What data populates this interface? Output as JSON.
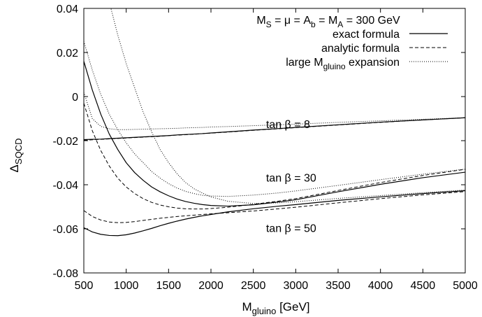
{
  "chart_data": {
    "type": "line",
    "title_main": "M",
    "title_sub_1": "S",
    "title_mid": " = μ = A",
    "title_sub_2": "b",
    "title_mid_2": " = M",
    "title_sub_3": "A",
    "title_tail": " = 300 GeV",
    "xlabel_main": "M",
    "xlabel_sub": "gluino",
    "xlabel_tail": " [GeV]",
    "ylabel_main": "Δ",
    "ylabel_sub": "SQCD",
    "xlim": [
      500,
      5000
    ],
    "ylim": [
      -0.08,
      0.04
    ],
    "x_ticks": [
      500,
      1000,
      1500,
      2000,
      2500,
      3000,
      3500,
      4000,
      4500,
      5000
    ],
    "x_tick_labels": [
      "500",
      "1000",
      "1500",
      "2000",
      "2500",
      "3000",
      "3500",
      "4000",
      "4500",
      "5000"
    ],
    "y_ticks": [
      -0.08,
      -0.06,
      -0.04,
      -0.02,
      0,
      0.02,
      0.04
    ],
    "y_tick_labels": [
      "-0.08",
      "-0.06",
      "-0.04",
      "-0.02",
      "0",
      "0.02",
      "0.04"
    ],
    "grid": false,
    "legend": {
      "placement": "top-right",
      "entries": [
        {
          "label": "exact formula",
          "style": "solid"
        },
        {
          "label": "analytic formula",
          "style": "dashed"
        },
        {
          "label_main": "large M",
          "label_sub": "gluino",
          "label_tail": " expansion",
          "style": "dotted"
        }
      ]
    },
    "annotations": [
      {
        "text": "tan β = 8",
        "x": 2650,
        "y": -0.0143
      },
      {
        "text": "tan β = 30",
        "x": 2650,
        "y": -0.0385
      },
      {
        "text": "tan β = 50",
        "x": 2650,
        "y": -0.0615
      }
    ],
    "x": [
      500,
      600,
      700,
      800,
      900,
      1000,
      1100,
      1200,
      1300,
      1400,
      1500,
      1600,
      1700,
      1800,
      1900,
      2000,
      2200,
      2500,
      2800,
      3000,
      3500,
      4000,
      4500,
      5000
    ],
    "series": [
      {
        "tanb": 8,
        "style": "solid",
        "values": [
          -0.0195,
          -0.0194,
          -0.0193,
          -0.0191,
          -0.0189,
          -0.0187,
          -0.0185,
          -0.0183,
          -0.0181,
          -0.0179,
          -0.0177,
          -0.0174,
          -0.0172,
          -0.017,
          -0.0168,
          -0.0165,
          -0.016,
          -0.0152,
          -0.0145,
          -0.014,
          -0.0128,
          -0.0116,
          -0.0106,
          -0.0096
        ]
      },
      {
        "tanb": 8,
        "style": "dashed",
        "values": [
          -0.0198,
          -0.0196,
          -0.0194,
          -0.0192,
          -0.019,
          -0.0188,
          -0.0186,
          -0.0184,
          -0.0182,
          -0.018,
          -0.0177,
          -0.0175,
          -0.0173,
          -0.0171,
          -0.0168,
          -0.0166,
          -0.0161,
          -0.0153,
          -0.0146,
          -0.0141,
          -0.0129,
          -0.0117,
          -0.0106,
          -0.0096
        ]
      },
      {
        "tanb": 8,
        "style": "dotted",
        "values": [
          0.002,
          -0.01,
          -0.0135,
          -0.0146,
          -0.015,
          -0.015,
          -0.0149,
          -0.0148,
          -0.0147,
          -0.0146,
          -0.0145,
          -0.0144,
          -0.0142,
          -0.0141,
          -0.014,
          -0.0138,
          -0.0136,
          -0.0132,
          -0.0128,
          -0.0125,
          -0.0117,
          -0.011,
          -0.0103,
          -0.0096
        ]
      },
      {
        "tanb": 30,
        "style": "solid",
        "values": [
          0.016,
          0.003,
          -0.008,
          -0.017,
          -0.024,
          -0.03,
          -0.0345,
          -0.038,
          -0.041,
          -0.0432,
          -0.045,
          -0.0465,
          -0.0476,
          -0.0484,
          -0.049,
          -0.0494,
          -0.0497,
          -0.0491,
          -0.0478,
          -0.0468,
          -0.0432,
          -0.0398,
          -0.0368,
          -0.0343
        ]
      },
      {
        "tanb": 30,
        "style": "dashed",
        "values": [
          -0.003,
          -0.0155,
          -0.0245,
          -0.0315,
          -0.037,
          -0.041,
          -0.044,
          -0.0463,
          -0.048,
          -0.0492,
          -0.05,
          -0.0506,
          -0.0509,
          -0.051,
          -0.051,
          -0.0508,
          -0.0502,
          -0.0489,
          -0.0474,
          -0.0463,
          -0.0426,
          -0.039,
          -0.0358,
          -0.033
        ]
      },
      {
        "tanb": 30,
        "style": "dotted",
        "values": [
          0.025,
          0.012,
          0.001,
          -0.008,
          -0.015,
          -0.021,
          -0.026,
          -0.03,
          -0.034,
          -0.037,
          -0.0395,
          -0.0415,
          -0.043,
          -0.044,
          -0.0448,
          -0.0451,
          -0.0453,
          -0.0447,
          -0.0437,
          -0.0428,
          -0.0403,
          -0.0377,
          -0.0352,
          -0.0329
        ]
      },
      {
        "tanb": 50,
        "style": "solid",
        "values": [
          -0.0595,
          -0.0614,
          -0.0625,
          -0.063,
          -0.0631,
          -0.0627,
          -0.0619,
          -0.0609,
          -0.0598,
          -0.0586,
          -0.0575,
          -0.0565,
          -0.0556,
          -0.0548,
          -0.0541,
          -0.0535,
          -0.0523,
          -0.0509,
          -0.0497,
          -0.049,
          -0.0471,
          -0.0455,
          -0.044,
          -0.0427
        ]
      },
      {
        "tanb": 50,
        "style": "dashed",
        "values": [
          -0.0517,
          -0.0544,
          -0.056,
          -0.0569,
          -0.0572,
          -0.0571,
          -0.0567,
          -0.0562,
          -0.0557,
          -0.0552,
          -0.0548,
          -0.0544,
          -0.0541,
          -0.0538,
          -0.0535,
          -0.0532,
          -0.0527,
          -0.0519,
          -0.0509,
          -0.0502,
          -0.0482,
          -0.0463,
          -0.0446,
          -0.0431
        ]
      },
      {
        "tanb": 50,
        "style": "dotted",
        "values": [
          0.05,
          0.05,
          0.05,
          0.043,
          0.028,
          0.015,
          0.004,
          -0.007,
          -0.016,
          -0.024,
          -0.03,
          -0.035,
          -0.039,
          -0.0418,
          -0.0438,
          -0.0455,
          -0.0475,
          -0.0485,
          -0.0482,
          -0.0477,
          -0.0462,
          -0.0449,
          -0.0436,
          -0.0424
        ]
      }
    ]
  }
}
